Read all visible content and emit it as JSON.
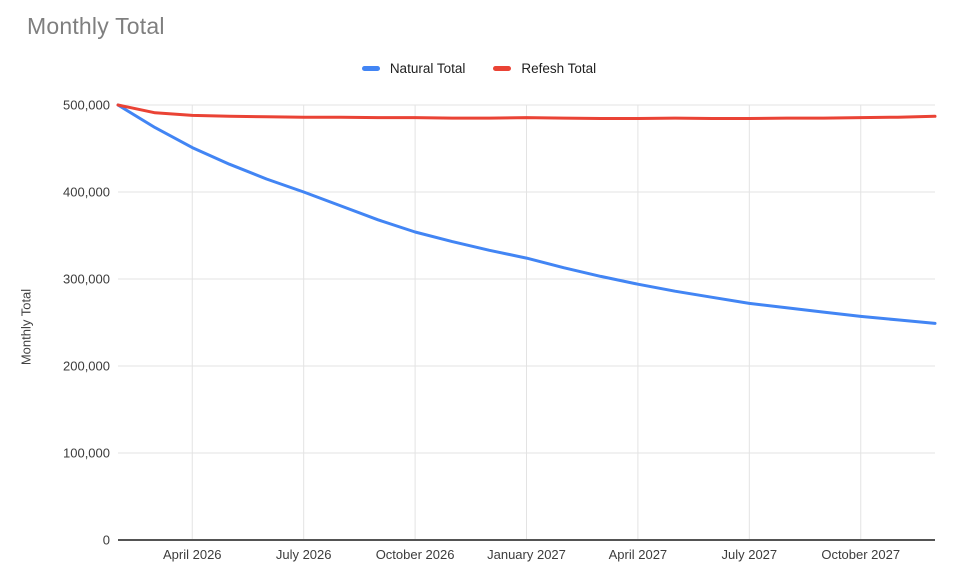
{
  "title": "Monthly Total",
  "colors": {
    "background": "#ffffff",
    "title_text": "#7f7f7f",
    "axis_label_text": "#3c3c3c",
    "legend_text": "#212121",
    "gridline": "#e3e3e3",
    "baseline": "#545454",
    "series_blue": "#4285f4",
    "series_red": "#ea4335"
  },
  "chart_data": {
    "type": "line",
    "title": "Monthly Total",
    "xlabel": "",
    "ylabel": "Monthly Total",
    "ylim": [
      0,
      500000
    ],
    "grid": true,
    "legend_position": "top-center",
    "x": [
      "Feb 2026",
      "Mar 2026",
      "Apr 2026",
      "May 2026",
      "Jun 2026",
      "Jul 2026",
      "Aug 2026",
      "Sep 2026",
      "Oct 2026",
      "Nov 2026",
      "Dec 2026",
      "Jan 2027",
      "Feb 2027",
      "Mar 2027",
      "Apr 2027",
      "May 2027",
      "Jun 2027",
      "Jul 2027",
      "Aug 2027",
      "Sep 2027",
      "Oct 2027",
      "Nov 2027",
      "Dec 2027"
    ],
    "x_tick_indices": [
      2,
      5,
      8,
      11,
      14,
      17,
      20
    ],
    "x_tick_labels": [
      "April 2026",
      "July 2026",
      "October 2026",
      "January 2027",
      "April 2027",
      "July 2027",
      "October 2027"
    ],
    "y_ticks": [
      0,
      100000,
      200000,
      300000,
      400000,
      500000
    ],
    "y_tick_labels": [
      "0",
      "100,000",
      "200,000",
      "300,000",
      "400,000",
      "500,000"
    ],
    "series": [
      {
        "name": "Natural Total",
        "color": "#4285f4",
        "values": [
          500000,
          474000,
          451000,
          432000,
          415000,
          400000,
          384000,
          368000,
          354000,
          343000,
          333000,
          324000,
          313000,
          303000,
          294000,
          286000,
          279000,
          272000,
          267000,
          262000,
          257000,
          253000,
          249000
        ]
      },
      {
        "name": "Refesh Total",
        "color": "#ea4335",
        "values": [
          500000,
          491000,
          488000,
          487000,
          486500,
          486000,
          486000,
          485500,
          485500,
          485000,
          485000,
          485500,
          485000,
          484500,
          484500,
          485000,
          484500,
          484500,
          485000,
          485000,
          485500,
          486000,
          487000
        ]
      }
    ]
  }
}
